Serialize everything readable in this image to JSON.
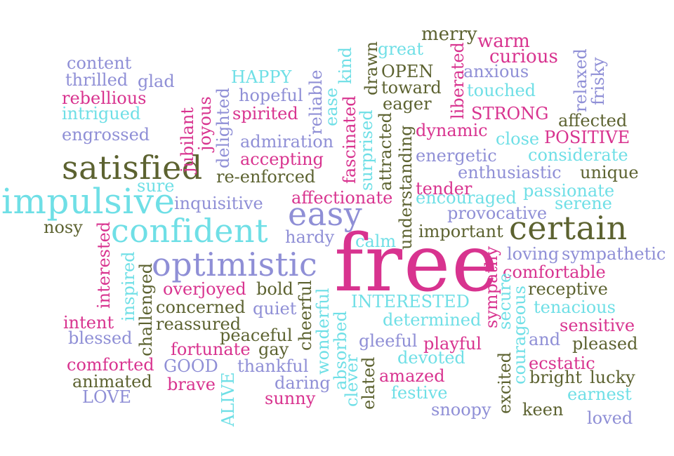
{
  "palette": {
    "pink": "#d8338f",
    "cyan": "#6fdfe6",
    "olive": "#5c6230",
    "violet": "#8f8fd6"
  },
  "words": [
    {
      "id": "merry",
      "text": "merry",
      "color": "olive"
    },
    {
      "id": "warm",
      "text": "warm",
      "color": "pink"
    },
    {
      "id": "content",
      "text": "content",
      "color": "violet"
    },
    {
      "id": "great",
      "text": "great",
      "color": "cyan"
    },
    {
      "id": "curious",
      "text": "curious",
      "color": "pink"
    },
    {
      "id": "thrilled",
      "text": "thrilled",
      "color": "violet"
    },
    {
      "id": "glad",
      "text": "glad",
      "color": "violet"
    },
    {
      "id": "happy",
      "text": "HAPPY",
      "color": "cyan"
    },
    {
      "id": "open",
      "text": "OPEN",
      "color": "olive"
    },
    {
      "id": "anxious",
      "text": "anxious",
      "color": "violet"
    },
    {
      "id": "rebellious",
      "text": "rebellious",
      "color": "pink"
    },
    {
      "id": "hopeful",
      "text": "hopeful",
      "color": "violet"
    },
    {
      "id": "toward",
      "text": "toward",
      "color": "olive"
    },
    {
      "id": "touched",
      "text": "touched",
      "color": "cyan"
    },
    {
      "id": "intrigued",
      "text": "intrigued",
      "color": "cyan"
    },
    {
      "id": "spirited",
      "text": "spirited",
      "color": "pink"
    },
    {
      "id": "eager",
      "text": "eager",
      "color": "olive"
    },
    {
      "id": "strong",
      "text": "STRONG",
      "color": "pink"
    },
    {
      "id": "affected",
      "text": "affected",
      "color": "olive"
    },
    {
      "id": "engrossed",
      "text": "engrossed",
      "color": "violet"
    },
    {
      "id": "dynamic",
      "text": "dynamic",
      "color": "pink"
    },
    {
      "id": "close",
      "text": "close",
      "color": "cyan"
    },
    {
      "id": "positive",
      "text": "POSITIVE",
      "color": "pink"
    },
    {
      "id": "admiration",
      "text": "admiration",
      "color": "violet"
    },
    {
      "id": "energetic",
      "text": "energetic",
      "color": "violet"
    },
    {
      "id": "considerate",
      "text": "considerate",
      "color": "cyan"
    },
    {
      "id": "satisfied",
      "text": "satisfied",
      "color": "olive"
    },
    {
      "id": "accepting",
      "text": "accepting",
      "color": "pink"
    },
    {
      "id": "enthusiastic",
      "text": "enthusiastic",
      "color": "violet"
    },
    {
      "id": "unique",
      "text": "unique",
      "color": "olive"
    },
    {
      "id": "re-enforced",
      "text": "re-enforced",
      "color": "olive"
    },
    {
      "id": "sure",
      "text": "sure",
      "color": "cyan"
    },
    {
      "id": "tender",
      "text": "tender",
      "color": "pink"
    },
    {
      "id": "passionate",
      "text": "passionate",
      "color": "cyan"
    },
    {
      "id": "impulsive",
      "text": "impulsive",
      "color": "cyan"
    },
    {
      "id": "inquisitive",
      "text": "inquisitive",
      "color": "violet"
    },
    {
      "id": "affectionate",
      "text": "affectionate",
      "color": "pink"
    },
    {
      "id": "encouraged",
      "text": "encouraged",
      "color": "cyan"
    },
    {
      "id": "serene",
      "text": "serene",
      "color": "cyan"
    },
    {
      "id": "easy",
      "text": "easy",
      "color": "violet"
    },
    {
      "id": "provocative",
      "text": "provocative",
      "color": "violet"
    },
    {
      "id": "nosy",
      "text": "nosy",
      "color": "olive"
    },
    {
      "id": "confident",
      "text": "confident",
      "color": "cyan"
    },
    {
      "id": "certain",
      "text": "certain",
      "color": "olive"
    },
    {
      "id": "important",
      "text": "important",
      "color": "olive"
    },
    {
      "id": "hardy",
      "text": "hardy",
      "color": "violet"
    },
    {
      "id": "calm",
      "text": "calm",
      "color": "cyan"
    },
    {
      "id": "free",
      "text": "free",
      "color": "pink"
    },
    {
      "id": "optimistic",
      "text": "optimistic",
      "color": "violet"
    },
    {
      "id": "loving",
      "text": "loving",
      "color": "violet"
    },
    {
      "id": "sympathetic",
      "text": "sympathetic",
      "color": "violet"
    },
    {
      "id": "comfortable",
      "text": "comfortable",
      "color": "pink"
    },
    {
      "id": "overjoyed",
      "text": "overjoyed",
      "color": "pink"
    },
    {
      "id": "bold",
      "text": "bold",
      "color": "olive"
    },
    {
      "id": "receptive",
      "text": "receptive",
      "color": "olive"
    },
    {
      "id": "concerned",
      "text": "concerned",
      "color": "olive"
    },
    {
      "id": "quiet",
      "text": "quiet",
      "color": "violet"
    },
    {
      "id": "interested-upper",
      "text": "INTERESTED",
      "color": "cyan"
    },
    {
      "id": "tenacious",
      "text": "tenacious",
      "color": "cyan"
    },
    {
      "id": "intent",
      "text": "intent",
      "color": "pink"
    },
    {
      "id": "reassured",
      "text": "reassured",
      "color": "olive"
    },
    {
      "id": "determined",
      "text": "determined",
      "color": "cyan"
    },
    {
      "id": "sensitive",
      "text": "sensitive",
      "color": "pink"
    },
    {
      "id": "peaceful",
      "text": "peaceful",
      "color": "olive"
    },
    {
      "id": "blessed",
      "text": "blessed",
      "color": "violet"
    },
    {
      "id": "gleeful",
      "text": "gleeful",
      "color": "violet"
    },
    {
      "id": "playful",
      "text": "playful",
      "color": "pink"
    },
    {
      "id": "and",
      "text": "and",
      "color": "violet"
    },
    {
      "id": "pleased",
      "text": "pleased",
      "color": "olive"
    },
    {
      "id": "fortunate",
      "text": "fortunate",
      "color": "pink"
    },
    {
      "id": "gay",
      "text": "gay",
      "color": "olive"
    },
    {
      "id": "comforted",
      "text": "comforted",
      "color": "pink"
    },
    {
      "id": "good",
      "text": "GOOD",
      "color": "violet"
    },
    {
      "id": "thankful",
      "text": "thankful",
      "color": "violet"
    },
    {
      "id": "devoted",
      "text": "devoted",
      "color": "cyan"
    },
    {
      "id": "ecstatic",
      "text": "ecstatic",
      "color": "pink"
    },
    {
      "id": "animated",
      "text": "animated",
      "color": "olive"
    },
    {
      "id": "brave",
      "text": "brave",
      "color": "pink"
    },
    {
      "id": "daring",
      "text": "daring",
      "color": "violet"
    },
    {
      "id": "amazed",
      "text": "amazed",
      "color": "pink"
    },
    {
      "id": "bright",
      "text": "bright",
      "color": "olive"
    },
    {
      "id": "lucky",
      "text": "lucky",
      "color": "olive"
    },
    {
      "id": "love",
      "text": "LOVE",
      "color": "violet"
    },
    {
      "id": "sunny",
      "text": "sunny",
      "color": "pink"
    },
    {
      "id": "festive",
      "text": "festive",
      "color": "cyan"
    },
    {
      "id": "earnest",
      "text": "earnest",
      "color": "cyan"
    },
    {
      "id": "snoopy",
      "text": "snoopy",
      "color": "violet"
    },
    {
      "id": "keen",
      "text": "keen",
      "color": "olive"
    },
    {
      "id": "loved",
      "text": "loved",
      "color": "violet"
    },
    {
      "id": "relaxed",
      "text": "relaxed",
      "color": "violet"
    },
    {
      "id": "frisky",
      "text": "frisky",
      "color": "violet"
    },
    {
      "id": "liberated",
      "text": "liberated",
      "color": "pink"
    },
    {
      "id": "kind",
      "text": "kind",
      "color": "cyan"
    },
    {
      "id": "ease",
      "text": "ease",
      "color": "cyan"
    },
    {
      "id": "reliable",
      "text": "reliable",
      "color": "violet"
    },
    {
      "id": "drawn",
      "text": "drawn",
      "color": "olive"
    },
    {
      "id": "fascinated",
      "text": "fascinated",
      "color": "pink"
    },
    {
      "id": "surprised",
      "text": "surprised",
      "color": "cyan"
    },
    {
      "id": "attracted",
      "text": "attracted",
      "color": "olive"
    },
    {
      "id": "understanding",
      "text": "understanding",
      "color": "olive"
    },
    {
      "id": "jubilant",
      "text": "jubilant",
      "color": "pink"
    },
    {
      "id": "joyous",
      "text": "joyous",
      "color": "pink"
    },
    {
      "id": "delighted",
      "text": "delighted",
      "color": "violet"
    },
    {
      "id": "interested",
      "text": "interested",
      "color": "pink"
    },
    {
      "id": "inspired",
      "text": "inspired",
      "color": "cyan"
    },
    {
      "id": "challenged",
      "text": "challenged",
      "color": "olive"
    },
    {
      "id": "cheerful",
      "text": "cheerful",
      "color": "olive"
    },
    {
      "id": "wonderful",
      "text": "wonderful",
      "color": "cyan"
    },
    {
      "id": "absorbed",
      "text": "absorbed",
      "color": "cyan"
    },
    {
      "id": "clever",
      "text": "clever",
      "color": "cyan"
    },
    {
      "id": "elated",
      "text": "elated",
      "color": "olive"
    },
    {
      "id": "alive",
      "text": "ALIVE",
      "color": "cyan"
    },
    {
      "id": "sympathy",
      "text": "sympathy",
      "color": "pink"
    },
    {
      "id": "secure",
      "text": "secure",
      "color": "cyan"
    },
    {
      "id": "courageous",
      "text": "courageous",
      "color": "cyan"
    },
    {
      "id": "excited",
      "text": "excited",
      "color": "olive"
    }
  ]
}
